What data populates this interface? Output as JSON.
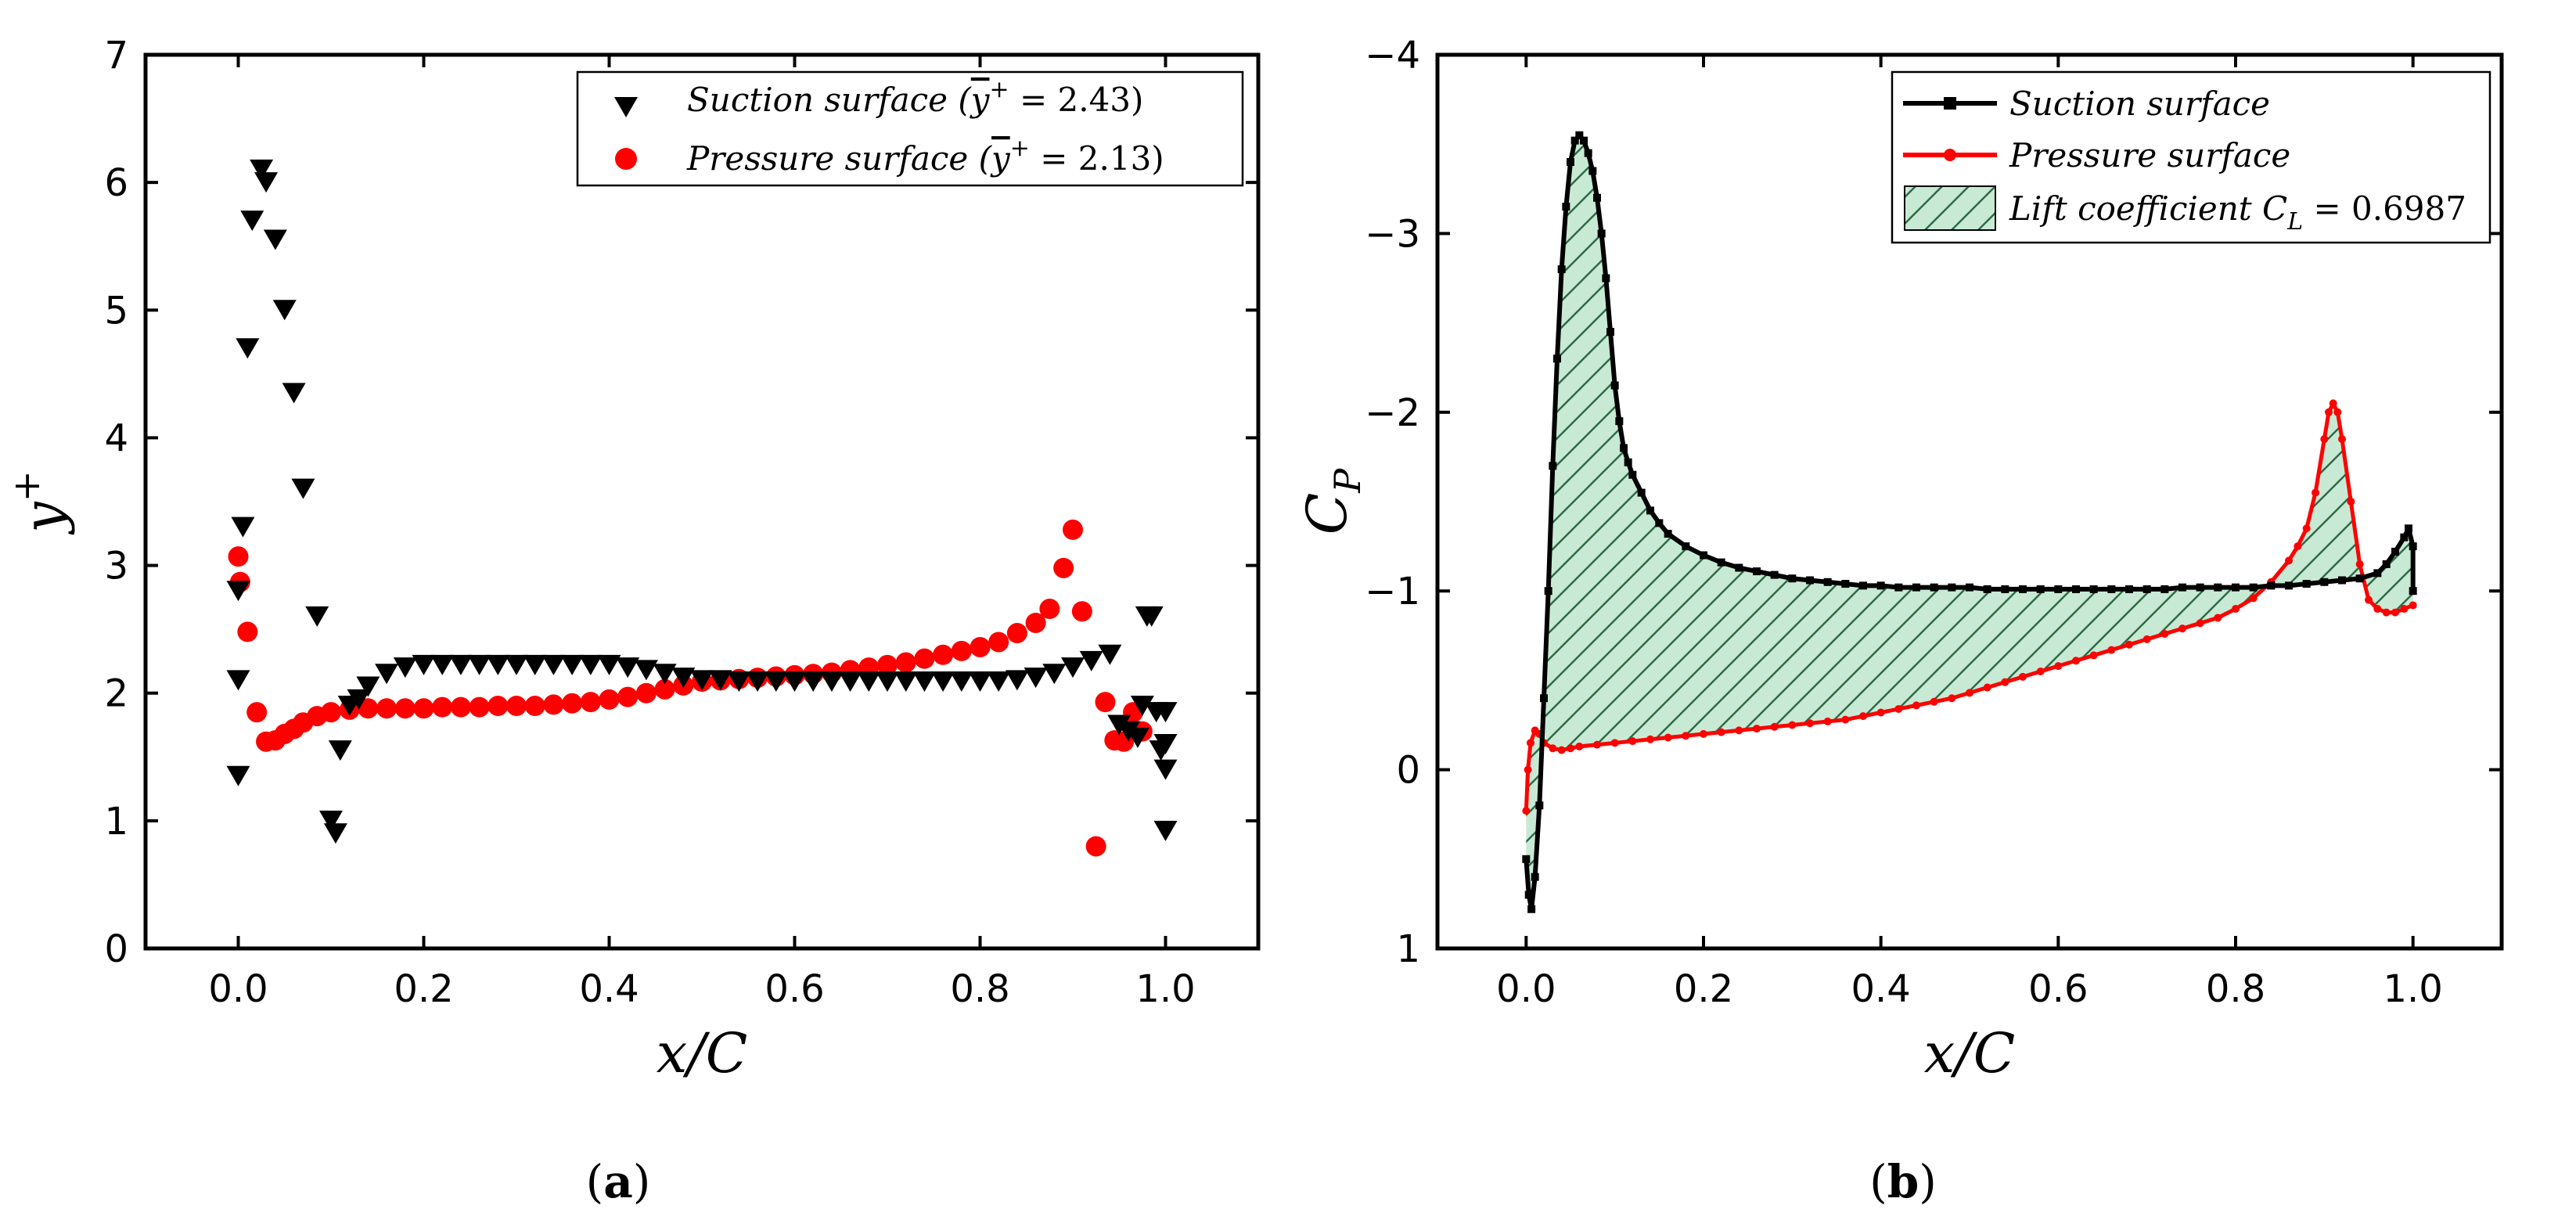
{
  "chart_data": [
    {
      "type": "scatter",
      "panel": "a",
      "caption_open": "(",
      "caption_letter": "a",
      "caption_close": ")",
      "xlabel": "x/C",
      "ylabel_base": "y",
      "ylabel_sup": "+",
      "xlim": [
        -0.1,
        1.1
      ],
      "ylim": [
        0,
        7
      ],
      "xticks": [
        "0.0",
        "0.2",
        "0.4",
        "0.6",
        "0.8",
        "1.0"
      ],
      "yticks": [
        "0",
        "1",
        "2",
        "3",
        "4",
        "5",
        "6",
        "7"
      ],
      "legend_position": "top-right",
      "series": [
        {
          "name": "Suction surface",
          "legend_text": "Suction surface (",
          "legend_overline": "y",
          "legend_sup": "+",
          "legend_value": " = 2.43)",
          "marker": "triangle-down",
          "color": "#000000",
          "x": [
            0.0,
            0.0,
            0.0,
            0.005,
            0.01,
            0.015,
            0.025,
            0.03,
            0.04,
            0.05,
            0.06,
            0.07,
            0.085,
            0.1,
            0.105,
            0.11,
            0.12,
            0.13,
            0.14,
            0.16,
            0.18,
            0.2,
            0.22,
            0.24,
            0.26,
            0.28,
            0.3,
            0.32,
            0.34,
            0.36,
            0.38,
            0.4,
            0.42,
            0.44,
            0.46,
            0.48,
            0.5,
            0.52,
            0.54,
            0.56,
            0.58,
            0.6,
            0.62,
            0.64,
            0.66,
            0.68,
            0.7,
            0.72,
            0.74,
            0.76,
            0.78,
            0.8,
            0.82,
            0.84,
            0.86,
            0.88,
            0.9,
            0.92,
            0.94,
            0.95,
            0.96,
            0.97,
            0.975,
            0.98,
            0.985,
            0.99,
            0.995,
            1.0,
            1.0,
            1.0,
            1.0
          ],
          "y": [
            2.8,
            2.1,
            1.35,
            3.3,
            4.7,
            5.7,
            6.1,
            6.0,
            5.55,
            5.0,
            4.35,
            3.6,
            2.6,
            1.0,
            0.9,
            1.55,
            1.9,
            1.95,
            2.05,
            2.15,
            2.2,
            2.22,
            2.22,
            2.22,
            2.22,
            2.22,
            2.22,
            2.22,
            2.22,
            2.22,
            2.22,
            2.22,
            2.2,
            2.18,
            2.15,
            2.12,
            2.1,
            2.1,
            2.09,
            2.09,
            2.09,
            2.09,
            2.09,
            2.09,
            2.09,
            2.09,
            2.09,
            2.09,
            2.09,
            2.09,
            2.09,
            2.09,
            2.09,
            2.1,
            2.12,
            2.15,
            2.2,
            2.25,
            2.3,
            1.75,
            1.7,
            1.65,
            1.9,
            2.6,
            2.6,
            1.85,
            1.55,
            1.4,
            0.92,
            1.6,
            1.85
          ]
        },
        {
          "name": "Pressure surface",
          "legend_text": "Pressure surface (",
          "legend_overline": "y",
          "legend_sup": "+",
          "legend_value": " = 2.13)",
          "marker": "circle",
          "color": "#ff0000",
          "x": [
            0.0,
            0.002,
            0.01,
            0.02,
            0.03,
            0.04,
            0.05,
            0.06,
            0.07,
            0.085,
            0.1,
            0.12,
            0.14,
            0.16,
            0.18,
            0.2,
            0.22,
            0.24,
            0.26,
            0.28,
            0.3,
            0.32,
            0.34,
            0.36,
            0.38,
            0.4,
            0.42,
            0.44,
            0.46,
            0.48,
            0.5,
            0.52,
            0.54,
            0.56,
            0.58,
            0.6,
            0.62,
            0.64,
            0.66,
            0.68,
            0.7,
            0.72,
            0.74,
            0.76,
            0.78,
            0.8,
            0.82,
            0.84,
            0.86,
            0.875,
            0.89,
            0.9,
            0.91,
            0.925,
            0.935,
            0.945,
            0.955,
            0.965,
            0.975
          ],
          "y": [
            3.07,
            2.87,
            2.48,
            1.85,
            1.62,
            1.63,
            1.68,
            1.72,
            1.77,
            1.82,
            1.85,
            1.87,
            1.88,
            1.88,
            1.88,
            1.88,
            1.89,
            1.89,
            1.89,
            1.9,
            1.9,
            1.9,
            1.91,
            1.92,
            1.93,
            1.95,
            1.97,
            2.0,
            2.03,
            2.06,
            2.09,
            2.1,
            2.11,
            2.12,
            2.13,
            2.14,
            2.15,
            2.16,
            2.18,
            2.2,
            2.22,
            2.24,
            2.27,
            2.3,
            2.33,
            2.36,
            2.4,
            2.47,
            2.55,
            2.66,
            2.98,
            3.28,
            2.64,
            0.8,
            1.93,
            1.63,
            1.62,
            1.85,
            1.7
          ]
        }
      ]
    },
    {
      "type": "line",
      "panel": "b",
      "caption_open": "(",
      "caption_letter": "b",
      "caption_close": ")",
      "xlabel": "x/C",
      "ylabel_base": "C",
      "ylabel_sub": "P",
      "xlim": [
        -0.1,
        1.1
      ],
      "ylim": [
        1,
        -4
      ],
      "y_inverted": true,
      "xticks": [
        "0.0",
        "0.2",
        "0.4",
        "0.6",
        "0.8",
        "1.0"
      ],
      "yticks": [
        "1",
        "0",
        "−1",
        "−2",
        "−3",
        "−4"
      ],
      "legend_position": "top-right",
      "series": [
        {
          "name": "Suction surface",
          "color": "#000000",
          "marker": "square",
          "x": [
            0.0,
            0.003,
            0.006,
            0.01,
            0.015,
            0.02,
            0.025,
            0.03,
            0.035,
            0.04,
            0.045,
            0.05,
            0.055,
            0.06,
            0.065,
            0.07,
            0.075,
            0.08,
            0.085,
            0.09,
            0.095,
            0.1,
            0.105,
            0.11,
            0.115,
            0.12,
            0.13,
            0.14,
            0.15,
            0.16,
            0.18,
            0.2,
            0.22,
            0.24,
            0.26,
            0.28,
            0.3,
            0.32,
            0.34,
            0.36,
            0.38,
            0.4,
            0.42,
            0.44,
            0.46,
            0.48,
            0.5,
            0.52,
            0.54,
            0.56,
            0.58,
            0.6,
            0.62,
            0.64,
            0.66,
            0.68,
            0.7,
            0.72,
            0.74,
            0.76,
            0.78,
            0.8,
            0.82,
            0.84,
            0.86,
            0.88,
            0.9,
            0.92,
            0.94,
            0.96,
            0.97,
            0.98,
            0.99,
            0.995,
            1.0,
            1.0
          ],
          "y": [
            0.5,
            0.7,
            0.78,
            0.6,
            0.2,
            -0.4,
            -1.0,
            -1.7,
            -2.3,
            -2.8,
            -3.15,
            -3.4,
            -3.52,
            -3.55,
            -3.52,
            -3.45,
            -3.35,
            -3.2,
            -3.0,
            -2.75,
            -2.45,
            -2.15,
            -1.95,
            -1.8,
            -1.72,
            -1.65,
            -1.55,
            -1.45,
            -1.38,
            -1.32,
            -1.25,
            -1.2,
            -1.16,
            -1.13,
            -1.11,
            -1.09,
            -1.07,
            -1.06,
            -1.05,
            -1.04,
            -1.03,
            -1.03,
            -1.02,
            -1.02,
            -1.02,
            -1.02,
            -1.02,
            -1.01,
            -1.01,
            -1.01,
            -1.01,
            -1.01,
            -1.01,
            -1.01,
            -1.01,
            -1.01,
            -1.01,
            -1.01,
            -1.02,
            -1.02,
            -1.02,
            -1.02,
            -1.02,
            -1.03,
            -1.03,
            -1.04,
            -1.05,
            -1.06,
            -1.07,
            -1.1,
            -1.15,
            -1.22,
            -1.3,
            -1.35,
            -1.25,
            -1.0
          ]
        },
        {
          "name": "Pressure surface",
          "color": "#ff0000",
          "marker": "dot",
          "x": [
            0.0,
            0.002,
            0.005,
            0.01,
            0.015,
            0.02,
            0.03,
            0.04,
            0.05,
            0.06,
            0.08,
            0.1,
            0.12,
            0.14,
            0.16,
            0.18,
            0.2,
            0.22,
            0.24,
            0.26,
            0.28,
            0.3,
            0.32,
            0.34,
            0.36,
            0.38,
            0.4,
            0.42,
            0.44,
            0.46,
            0.48,
            0.5,
            0.52,
            0.54,
            0.56,
            0.58,
            0.6,
            0.62,
            0.64,
            0.66,
            0.68,
            0.7,
            0.72,
            0.74,
            0.76,
            0.78,
            0.8,
            0.82,
            0.84,
            0.86,
            0.87,
            0.88,
            0.89,
            0.9,
            0.905,
            0.91,
            0.915,
            0.92,
            0.93,
            0.94,
            0.95,
            0.96,
            0.97,
            0.98,
            0.99,
            1.0
          ],
          "y": [
            0.23,
            0.0,
            -0.15,
            -0.22,
            -0.2,
            -0.15,
            -0.12,
            -0.11,
            -0.12,
            -0.13,
            -0.14,
            -0.15,
            -0.16,
            -0.17,
            -0.18,
            -0.19,
            -0.2,
            -0.21,
            -0.22,
            -0.23,
            -0.24,
            -0.25,
            -0.26,
            -0.27,
            -0.28,
            -0.3,
            -0.32,
            -0.34,
            -0.36,
            -0.38,
            -0.4,
            -0.43,
            -0.46,
            -0.49,
            -0.52,
            -0.55,
            -0.58,
            -0.61,
            -0.64,
            -0.67,
            -0.7,
            -0.73,
            -0.76,
            -0.79,
            -0.82,
            -0.85,
            -0.9,
            -0.96,
            -1.05,
            -1.17,
            -1.25,
            -1.35,
            -1.55,
            -1.85,
            -2.0,
            -2.05,
            -2.0,
            -1.85,
            -1.5,
            -1.15,
            -0.95,
            -0.9,
            -0.88,
            -0.88,
            -0.9,
            -0.92
          ]
        },
        {
          "name": "Lift coefficient",
          "legend_text": "Lift coefficient C",
          "legend_sub": "L",
          "legend_value": " = 0.6987",
          "type": "area",
          "color": "#c8ead5"
        }
      ],
      "legend": [
        "Suction surface",
        "Pressure surface"
      ]
    }
  ]
}
